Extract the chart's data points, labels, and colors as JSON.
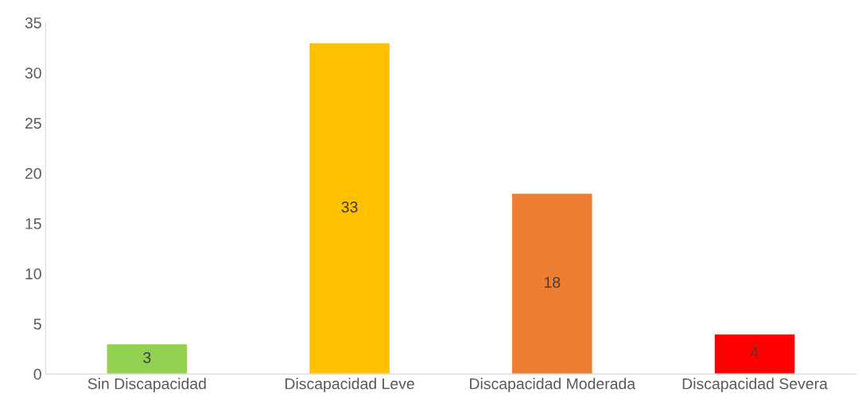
{
  "chart_data": {
    "type": "bar",
    "categories": [
      "Sin Discapacidad",
      "Discapacidad Leve",
      "Discapacidad Moderada",
      "Discapacidad Severa"
    ],
    "values": [
      3,
      33,
      18,
      4
    ],
    "colors": [
      "#92d050",
      "#ffc000",
      "#ed7d31",
      "#ff0000"
    ],
    "ylim": [
      0,
      35
    ],
    "yticks": [
      0,
      5,
      10,
      15,
      20,
      25,
      30,
      35
    ],
    "data_labels": true,
    "grid": false,
    "legend": false
  }
}
